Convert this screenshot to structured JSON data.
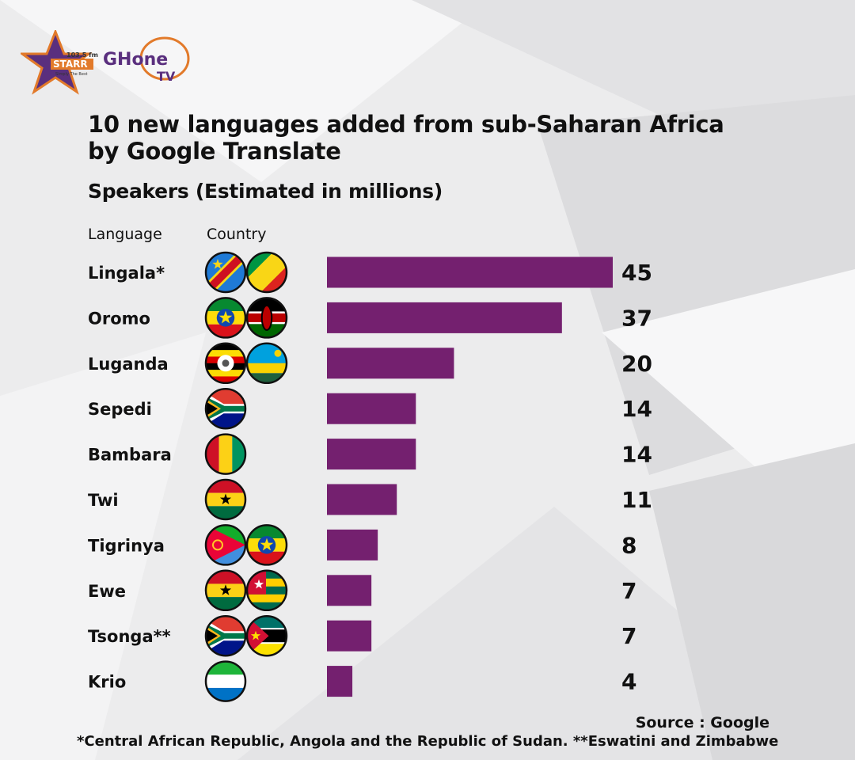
{
  "header": {
    "logo_starr_freq": "103.5 fm",
    "logo_starr_name": "STARR",
    "logo_starr_tagline": "Simply The Best",
    "logo_ghone": "GHone",
    "logo_tv": "TV"
  },
  "title_line1": "10 new languages added from sub-Saharan Africa",
  "title_line2": "by Google Translate",
  "subtitle": "Speakers (Estimated in millions)",
  "column_headers": {
    "language": "Language",
    "country": "Country"
  },
  "chart_data": {
    "type": "bar",
    "orientation": "horizontal",
    "title": "10 new languages added from sub-Saharan Africa by Google Translate",
    "subtitle": "Speakers (Estimated in millions)",
    "categories": [
      "Lingala*",
      "Oromo",
      "Luganda",
      "Sepedi",
      "Bambara",
      "Twi",
      "Tigrinya",
      "Ewe",
      "Tsonga**",
      "Krio"
    ],
    "values": [
      45,
      37,
      20,
      14,
      14,
      11,
      8,
      7,
      7,
      4
    ],
    "countries": [
      [
        "dr-congo",
        "congo"
      ],
      [
        "ethiopia",
        "kenya"
      ],
      [
        "uganda",
        "rwanda"
      ],
      [
        "south-africa"
      ],
      [
        "guinea"
      ],
      [
        "ghana"
      ],
      [
        "eritrea",
        "ethiopia"
      ],
      [
        "ghana",
        "togo"
      ],
      [
        "south-africa",
        "mozambique"
      ],
      [
        "sierra-leone"
      ]
    ],
    "bar_color": "#74206f",
    "grid": false,
    "legend": "none"
  },
  "source": "Source : Google",
  "footnote": "*Central African Republic, Angola and the Republic of Sudan. **Eswatini and Zimbabwe"
}
